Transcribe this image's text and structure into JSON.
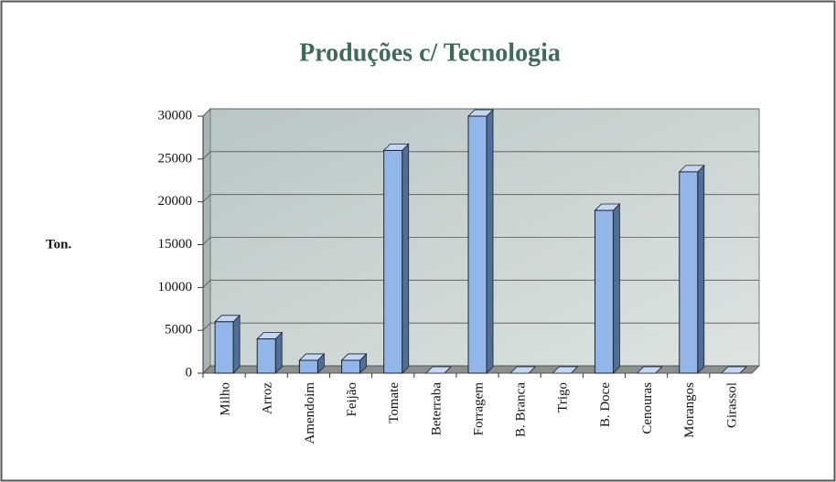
{
  "chart_data": {
    "type": "bar",
    "title": "Produções c/ Tecnologia",
    "y_label": "Ton.",
    "categories": [
      "Milho",
      "Arroz",
      "Amendoim",
      "Feijão",
      "Tomate",
      "Beterraba",
      "Forragem",
      "B. Branca",
      "Trigo",
      "B. Doce",
      "Cenouras",
      "Morangos",
      "Girassol"
    ],
    "values": [
      6000,
      4000,
      1500,
      1500,
      26000,
      0,
      30000,
      0,
      0,
      19000,
      0,
      23500,
      0
    ],
    "color": "#92b6ea",
    "ylim": [
      0,
      30000
    ],
    "yticks": [
      0,
      5000,
      10000,
      15000,
      20000,
      25000,
      30000
    ],
    "grid": true
  }
}
